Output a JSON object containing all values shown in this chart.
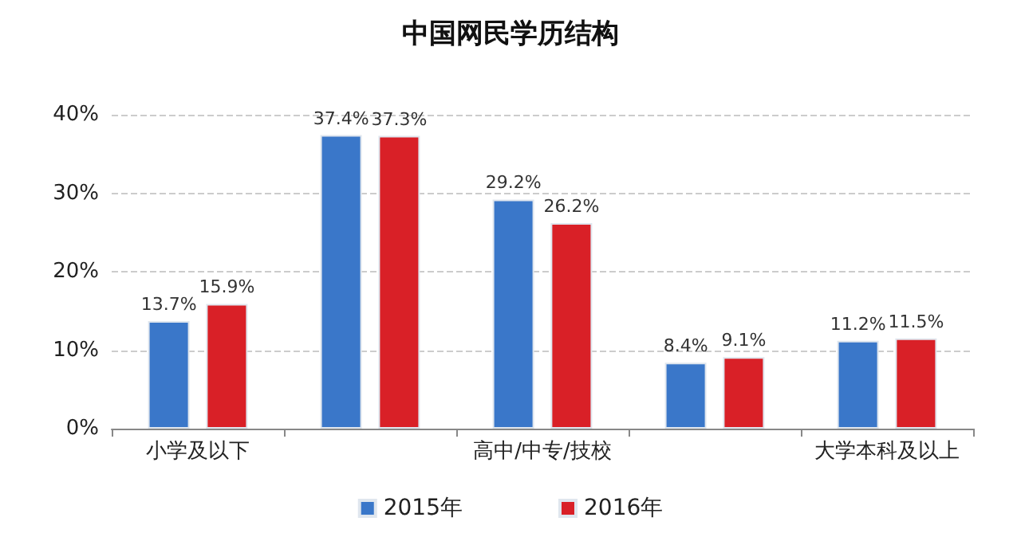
{
  "chart_data": {
    "type": "bar",
    "title": "中国网民学历结构",
    "categories": [
      "小学及以下",
      null,
      "高中/中专/技校",
      null,
      "大学本科及以上"
    ],
    "series": [
      {
        "name": "2015年",
        "color": "#3a77c9",
        "values": [
          13.7,
          37.4,
          29.2,
          8.4,
          11.2
        ],
        "value_labels": [
          "13.7%",
          "37.4%",
          "29.2%",
          "8.4%",
          "11.2%"
        ]
      },
      {
        "name": "2016年",
        "color": "#d92027",
        "values": [
          15.9,
          37.3,
          26.2,
          9.1,
          11.5
        ],
        "value_labels": [
          "15.9%",
          "37.3%",
          "26.2%",
          "9.1%",
          "11.5%"
        ]
      }
    ],
    "ylim": [
      0,
      40
    ],
    "yticks": [
      {
        "value": 0,
        "label": "0%"
      },
      {
        "value": 10,
        "label": "10%"
      },
      {
        "value": 20,
        "label": "20%"
      },
      {
        "value": 30,
        "label": "30%"
      },
      {
        "value": 40,
        "label": "40%"
      }
    ],
    "grid": "y",
    "legend": "bottom"
  }
}
